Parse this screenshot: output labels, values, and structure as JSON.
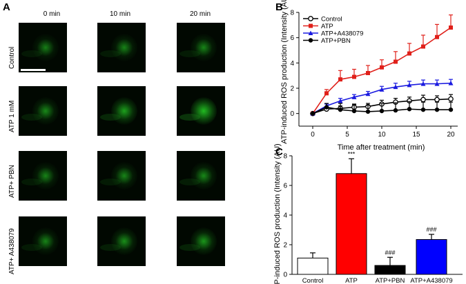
{
  "panel_labels": {
    "a": "A",
    "b": "B",
    "c": "C"
  },
  "microscopy": {
    "timepoints": [
      "0 min",
      "10 min",
      "20 min"
    ],
    "rows": [
      {
        "label": "Control",
        "intensity": [
          0.35,
          0.4,
          0.42
        ]
      },
      {
        "label": "ATP 1 mM",
        "intensity": [
          0.45,
          0.7,
          0.95
        ]
      },
      {
        "label": "ATP+ PBN",
        "intensity": [
          0.4,
          0.42,
          0.45
        ]
      },
      {
        "label": "ATP+ A438079",
        "intensity": [
          0.4,
          0.5,
          0.58
        ]
      }
    ],
    "tile_color": "#22c022"
  },
  "chart_data": [
    {
      "type": "line",
      "xlabel": "Time after treatment (min)",
      "ylabel": "ATP-induced ROS production (Intensity (AU)",
      "xlim": [
        -2,
        21
      ],
      "ylim": [
        -1,
        8
      ],
      "xticks": [
        0,
        5,
        10,
        15,
        20
      ],
      "yticks": [
        0,
        2,
        4,
        6,
        8
      ],
      "legend_position": "top-left",
      "series": [
        {
          "name": "Control",
          "color": "#000000",
          "marker": "open-circle",
          "x": [
            0,
            2,
            4,
            6,
            8,
            10,
            12,
            14,
            16,
            18,
            20
          ],
          "y": [
            0,
            0.35,
            0.4,
            0.5,
            0.55,
            0.75,
            0.9,
            1.0,
            1.1,
            1.1,
            1.15
          ],
          "err": [
            0,
            0.15,
            0.2,
            0.25,
            0.25,
            0.3,
            0.3,
            0.3,
            0.35,
            0.3,
            0.35
          ]
        },
        {
          "name": "ATP",
          "color": "#e0201a",
          "marker": "square",
          "x": [
            0,
            2,
            4,
            6,
            8,
            10,
            12,
            14,
            16,
            18,
            20
          ],
          "y": [
            0,
            1.6,
            2.7,
            2.9,
            3.2,
            3.65,
            4.1,
            4.75,
            5.3,
            6.05,
            6.8
          ],
          "err": [
            0,
            0.3,
            0.7,
            0.6,
            0.6,
            0.6,
            0.8,
            0.8,
            0.9,
            1.0,
            1.0
          ]
        },
        {
          "name": "ATP+A438079",
          "color": "#1a1ae0",
          "marker": "triangle",
          "x": [
            0,
            2,
            4,
            6,
            8,
            10,
            12,
            14,
            16,
            18,
            20
          ],
          "y": [
            0,
            0.6,
            1.0,
            1.3,
            1.55,
            1.9,
            2.1,
            2.25,
            2.35,
            2.35,
            2.4
          ],
          "err": [
            0,
            0.15,
            0.2,
            0.2,
            0.2,
            0.25,
            0.3,
            0.3,
            0.3,
            0.3,
            0.3
          ]
        },
        {
          "name": "ATP+PBN",
          "color": "#000000",
          "marker": "filled-circle",
          "x": [
            0,
            2,
            4,
            6,
            8,
            10,
            12,
            14,
            16,
            18,
            20
          ],
          "y": [
            0,
            0.5,
            0.3,
            0.2,
            0.15,
            0.2,
            0.25,
            0.35,
            0.3,
            0.3,
            0.3
          ],
          "err": [
            0,
            0.3,
            0.5,
            0.5,
            0.5,
            0.6,
            0.6,
            0.6,
            0.6,
            0.6,
            0.6
          ]
        }
      ]
    },
    {
      "type": "bar",
      "ylabel": "ATP-induced ROS production (Intensity (AU)",
      "ylim": [
        0,
        8
      ],
      "yticks": [
        0,
        2,
        4,
        6,
        8
      ],
      "categories": [
        "Control",
        "ATP",
        "ATP+PBN",
        "ATP+A438079"
      ],
      "values": [
        1.1,
        6.8,
        0.6,
        2.35
      ],
      "errors": [
        0.35,
        1.0,
        0.55,
        0.35
      ],
      "colors": [
        "#ffffff",
        "#ff0000",
        "#000000",
        "#0000ff"
      ],
      "annotations": [
        "",
        "***",
        "###",
        "###"
      ]
    }
  ]
}
